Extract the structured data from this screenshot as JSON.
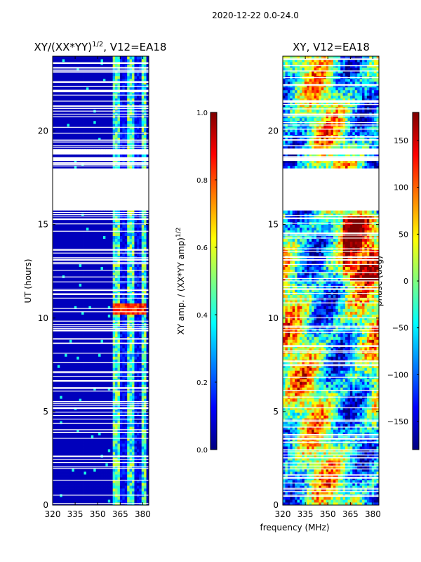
{
  "suptitle": "2020-12-22 0.0-24.0",
  "colors": {
    "jet": [
      "#00007f",
      "#0000ff",
      "#007fff",
      "#00ffff",
      "#7fff7f",
      "#ffff00",
      "#ff7f00",
      "#ff0000",
      "#7f0000"
    ]
  },
  "chart_data": [
    {
      "type": "heatmap",
      "panel": "amplitude",
      "title_main": "XY/(XX*YY)",
      "title_exp": "1/2",
      "title_tail": ", V12=EA18",
      "xlabel": "",
      "ylabel": "UT (hours)",
      "xlim": [
        320,
        384
      ],
      "ylim": [
        0,
        24
      ],
      "xticks": [
        320,
        335,
        350,
        365,
        380
      ],
      "yticks": [
        0,
        5,
        10,
        15,
        20
      ],
      "blank_bands": [
        [
          15.8,
          17.8
        ],
        [
          17.85,
          18.0
        ],
        [
          18.4,
          18.6
        ],
        [
          18.75,
          19.0
        ]
      ],
      "active_band_mhz": [
        360.5,
        382
      ],
      "colorbar": {
        "label_main": "XY amp. / (XX*YY amp)",
        "label_exp": "1/2",
        "range": [
          0.0,
          1.0
        ],
        "ticks": [
          0.0,
          0.2,
          0.4,
          0.6,
          0.8,
          1.0
        ],
        "tick_labels": [
          "0.0",
          "0.2",
          "0.4",
          "0.6",
          "0.8",
          "1.0"
        ]
      }
    },
    {
      "type": "heatmap",
      "panel": "phase",
      "title": "XY, V12=EA18",
      "xlabel": "frequency (MHz)",
      "ylabel": "",
      "xlim": [
        320,
        384
      ],
      "ylim": [
        0,
        24
      ],
      "xticks": [
        320,
        335,
        350,
        365,
        380
      ],
      "yticks": [
        0,
        5,
        10,
        15,
        20
      ],
      "blank_bands": [
        [
          15.8,
          17.8
        ],
        [
          17.85,
          18.0
        ],
        [
          18.4,
          18.6
        ],
        [
          18.75,
          19.0
        ]
      ],
      "colorbar": {
        "label": "phase (deg)",
        "range": [
          -180,
          180
        ],
        "ticks": [
          -150,
          -100,
          -50,
          0,
          50,
          100,
          150
        ],
        "tick_labels": [
          "−150",
          "−100",
          "−50",
          "0",
          "50",
          "100",
          "150"
        ]
      }
    }
  ]
}
